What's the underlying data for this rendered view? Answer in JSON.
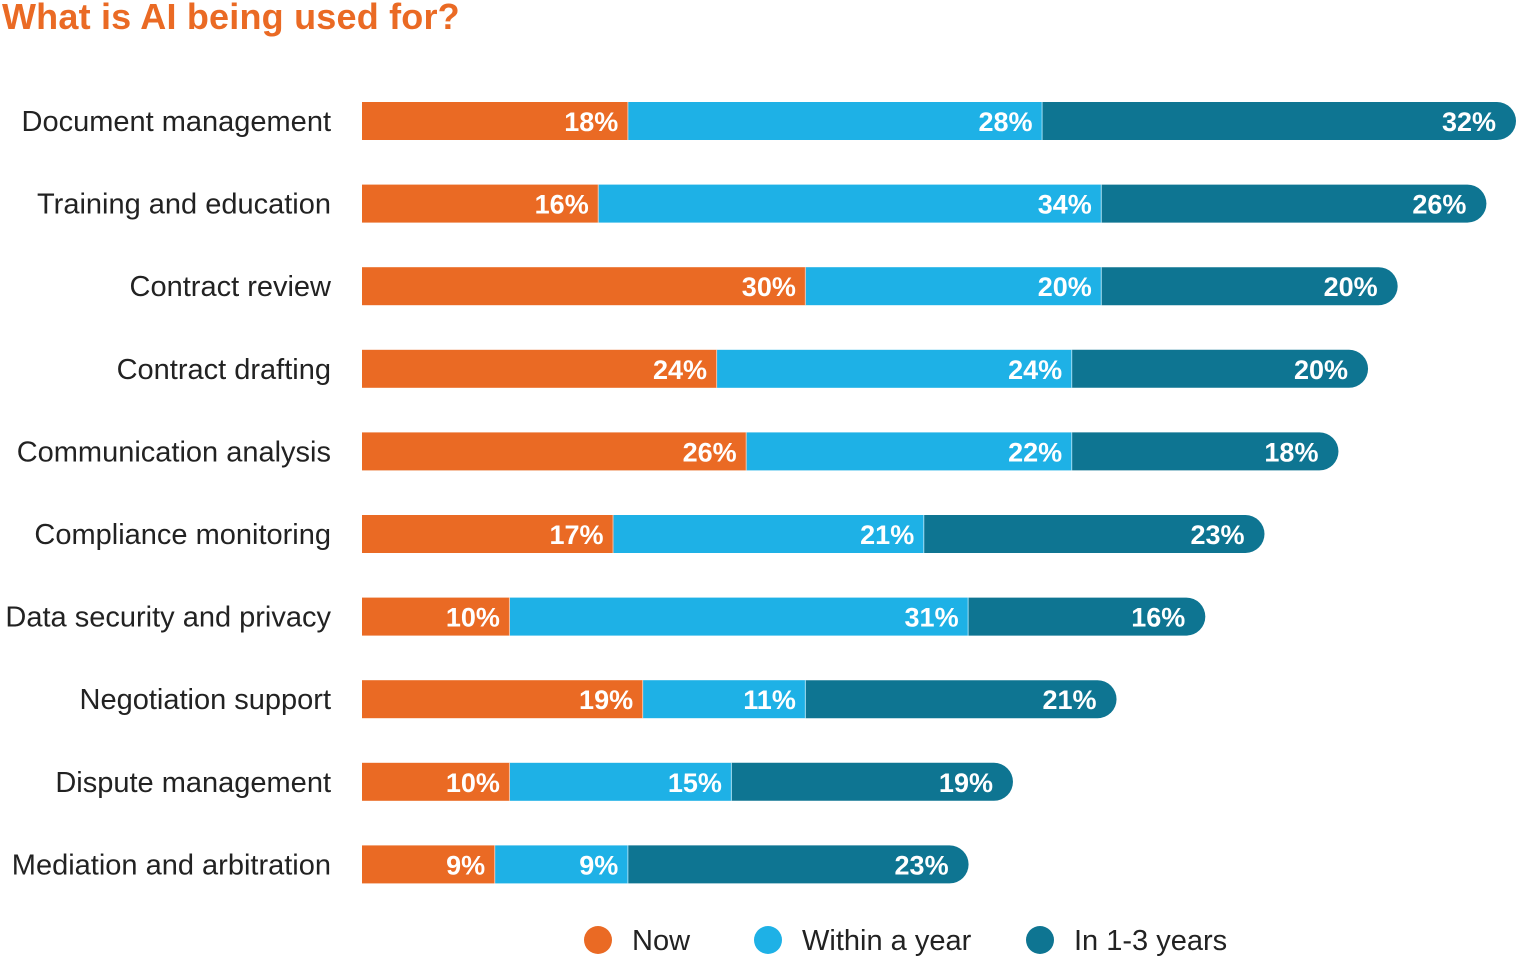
{
  "chart_data": {
    "type": "bar",
    "orientation": "horizontal",
    "stacked": true,
    "title": "What is AI being used for?",
    "xlabel": "",
    "ylabel": "",
    "grid": false,
    "legend_position": "bottom",
    "categories": [
      "Document management",
      "Training and education",
      "Contract review",
      "Contract drafting",
      "Communication analysis",
      "Compliance monitoring",
      "Data security and privacy",
      "Negotiation support",
      "Dispute management",
      "Mediation and arbitration"
    ],
    "series": [
      {
        "name": "Now",
        "color": "#ea6a24",
        "values": [
          18,
          16,
          30,
          24,
          26,
          17,
          10,
          19,
          10,
          9
        ]
      },
      {
        "name": "Within a year",
        "color": "#1eb1e6",
        "values": [
          28,
          34,
          20,
          24,
          22,
          21,
          31,
          11,
          15,
          9
        ]
      },
      {
        "name": "In 1-3 years",
        "color": "#0e7592",
        "values": [
          32,
          26,
          20,
          20,
          18,
          23,
          16,
          21,
          19,
          23
        ]
      }
    ],
    "value_suffix": "%",
    "xlim": [
      0,
      78
    ]
  }
}
